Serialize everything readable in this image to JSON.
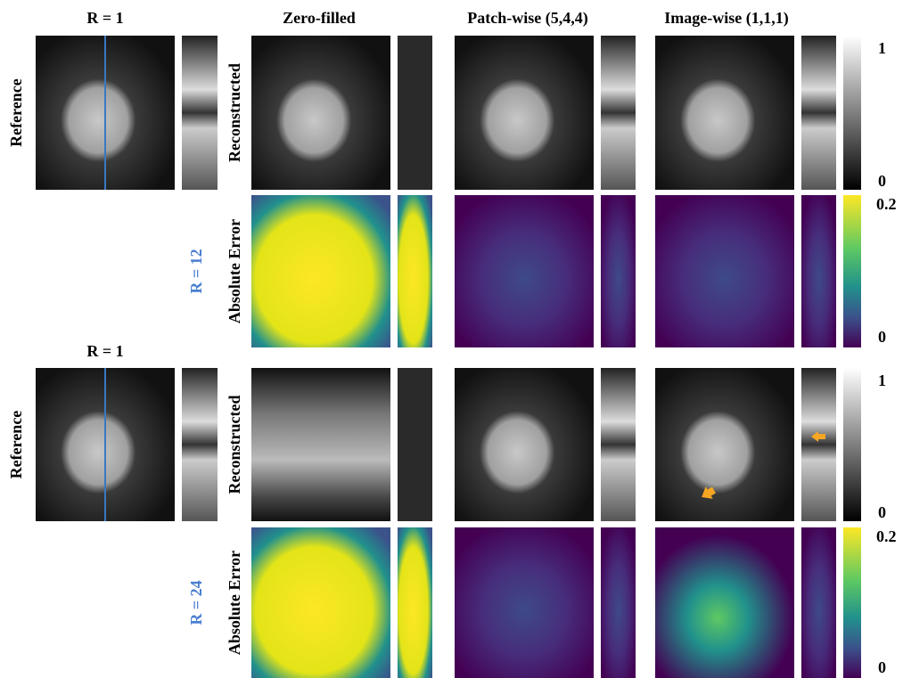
{
  "header": {
    "columns": [
      "R = 1",
      "Zero-filled",
      "Patch-wise (5,4,4)",
      "Image-wise (1,1,1)"
    ]
  },
  "blocks": [
    {
      "reference_label": "Reference",
      "rate": "R = 12",
      "rows": [
        "Reconstructed",
        "Absolute Error"
      ]
    },
    {
      "reference_title": "R = 1",
      "reference_label": "Reference",
      "rate": "R = 24",
      "rows": [
        "Reconstructed",
        "Absolute Error"
      ]
    }
  ],
  "colorbars": {
    "gray": {
      "top": 1,
      "bottom": 0
    },
    "error": {
      "top": 0.2,
      "bottom": 0
    }
  }
}
